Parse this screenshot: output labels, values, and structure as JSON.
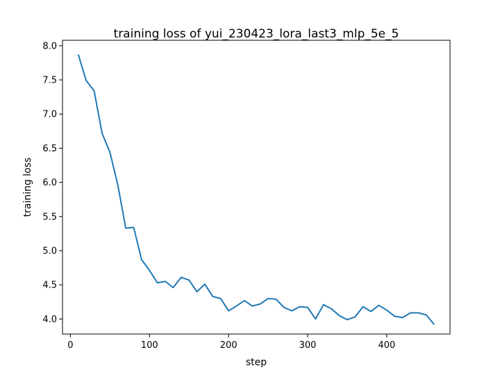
{
  "chart_data": {
    "type": "line",
    "title": "training loss of yui_230423_lora_last3_mlp_5e_5",
    "xlabel": "step",
    "ylabel": "training loss",
    "xlim": [
      -10,
      480
    ],
    "ylim": [
      3.78,
      8.08
    ],
    "xticks": [
      0,
      100,
      200,
      300,
      400
    ],
    "yticks": [
      4.0,
      4.5,
      5.0,
      5.5,
      6.0,
      6.5,
      7.0,
      7.5,
      8.0
    ],
    "grid": false,
    "series": [
      {
        "name": "",
        "color": "#1f77b4",
        "x": [
          10,
          20,
          30,
          40,
          50,
          60,
          70,
          80,
          90,
          100,
          110,
          120,
          130,
          140,
          150,
          160,
          170,
          180,
          190,
          200,
          210,
          220,
          230,
          240,
          250,
          260,
          270,
          280,
          290,
          300,
          310,
          320,
          330,
          340,
          350,
          360,
          370,
          380,
          390,
          400,
          410,
          420,
          430,
          440,
          450,
          460
        ],
        "y": [
          7.87,
          7.49,
          7.34,
          6.72,
          6.44,
          5.96,
          5.33,
          5.34,
          4.87,
          4.71,
          4.53,
          4.55,
          4.46,
          4.61,
          4.57,
          4.4,
          4.51,
          4.33,
          4.3,
          4.12,
          4.19,
          4.27,
          4.19,
          4.22,
          4.3,
          4.29,
          4.17,
          4.12,
          4.18,
          4.17,
          4.0,
          4.21,
          4.15,
          4.05,
          3.99,
          4.03,
          4.18,
          4.11,
          4.2,
          4.13,
          4.04,
          4.02,
          4.09,
          4.09,
          4.06,
          3.92
        ]
      }
    ]
  }
}
